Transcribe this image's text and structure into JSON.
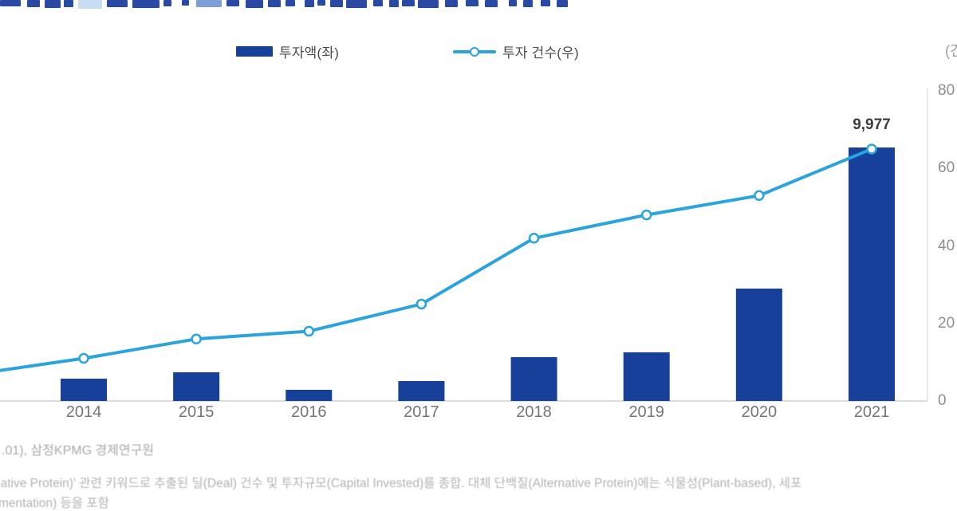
{
  "legend": {
    "bar": {
      "label": "투자액(좌)"
    },
    "line": {
      "label": "투자 건수(우)"
    }
  },
  "right_axis": {
    "unit_label": "(건)",
    "ticks": [
      "80",
      "60",
      "40",
      "20",
      "0"
    ]
  },
  "x_axis": {
    "labels": [
      "2014",
      "2015",
      "2016",
      "2017",
      "2018",
      "2019",
      "2020",
      "2021"
    ]
  },
  "annotation": {
    "bar_2021_label": "9,977"
  },
  "chart_data": {
    "type": "combo-bar-line",
    "categories": [
      "2014",
      "2015",
      "2016",
      "2017",
      "2018",
      "2019",
      "2020",
      "2021"
    ],
    "series": [
      {
        "name": "투자액(좌)",
        "type": "bar",
        "axis": "left",
        "values": [
          878,
          1130,
          440,
          784,
          1725,
          1914,
          4424,
          9977
        ],
        "labeled_value": {
          "category": "2021",
          "text": "9,977"
        }
      },
      {
        "name": "투자 건수(우)",
        "type": "line",
        "axis": "right",
        "values": [
          11,
          16,
          18,
          25,
          42,
          48,
          53,
          65
        ],
        "left_edge_entry_value": 7.5
      }
    ],
    "right_ylim": [
      0,
      80
    ],
    "left_axis_visible": false,
    "legend_position": "top",
    "grid": false,
    "note": "left value axis and chart title are cropped out of frame; only the 9,977 bar label is shown"
  },
  "footnotes": {
    "line1": ".01), 삼정KPMG 경제연구원",
    "line2": "native Protein)' 관련 키워드로 추출된 딜(Deal) 건수 및 투자규모(Capital Invested)를 종합. 대체 단백질(Alternative Protein)에는 식물성(Plant-based), 세포",
    "line3": "mentation) 등을 포함"
  },
  "colors": {
    "bar": "#16409a",
    "line": "#2ba3dd",
    "title_fragment": "#2a49a3",
    "axis_line": "#dcdcdc",
    "right_axis_line": "#e2e2e2",
    "tick_text": "#8f8f8f",
    "annotation_text": "#3d3d3d",
    "footnote_text": "#b3b3b3"
  }
}
